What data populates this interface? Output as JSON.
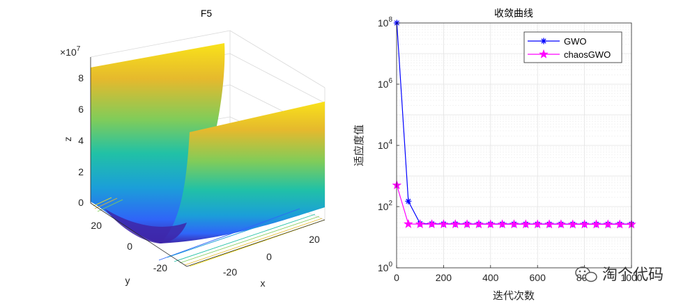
{
  "chart_data": [
    {
      "type": "surface3d",
      "title": "F5",
      "xlabel": "x",
      "ylabel": "y",
      "zlabel": "z",
      "z_exponent_label": "×10",
      "z_exponent_value": "7",
      "x_ticks": [
        "-20",
        "0",
        "20"
      ],
      "y_ticks": [
        "20",
        "0",
        "-20"
      ],
      "z_ticks": [
        "0",
        "2",
        "4",
        "6",
        "8"
      ],
      "xlim": [
        -30,
        30
      ],
      "ylim": [
        -30,
        30
      ],
      "zlim": [
        0,
        90000000
      ],
      "colormap": [
        "#3e26a8",
        "#2f65f8",
        "#1b9fd8",
        "#21c1a6",
        "#81cc59",
        "#e5b92d",
        "#f9e21a"
      ],
      "description_of_surface": "trough along x, rising in y (Rosenbrock-type F5)"
    },
    {
      "type": "line",
      "title": "收敛曲线",
      "xlabel": "迭代次数",
      "ylabel": "适应度值",
      "yscale": "log",
      "xlim": [
        0,
        1000
      ],
      "ylim": [
        1,
        100000000
      ],
      "x_ticks": [
        "0",
        "200",
        "400",
        "600",
        "800",
        "1000"
      ],
      "y_tick_powers": [
        "0",
        "2",
        "4",
        "6",
        "8"
      ],
      "y_tick_base": "10",
      "grid": true,
      "legend_position": "top-right",
      "series": [
        {
          "name": "GWO",
          "color": "#0000ff",
          "marker": "asterisk",
          "x": [
            1,
            50,
            100,
            150,
            200,
            250,
            300,
            350,
            400,
            450,
            500,
            550,
            600,
            650,
            700,
            750,
            800,
            850,
            900,
            950,
            1000
          ],
          "y": [
            100000000,
            150,
            28,
            27.5,
            27.3,
            27.2,
            27.1,
            27.0,
            27.0,
            27.0,
            27.0,
            26.9,
            26.9,
            26.9,
            26.9,
            26.9,
            26.8,
            26.8,
            26.8,
            26.8,
            26.8
          ]
        },
        {
          "name": "chaosGWO",
          "color": "#ff00ff",
          "marker": "pentagram",
          "x": [
            1,
            50,
            100,
            150,
            200,
            250,
            300,
            350,
            400,
            450,
            500,
            550,
            600,
            650,
            700,
            750,
            800,
            850,
            900,
            950,
            1000
          ],
          "y": [
            500,
            27,
            26.8,
            26.7,
            26.6,
            26.6,
            26.5,
            26.5,
            26.5,
            26.5,
            26.4,
            26.4,
            26.4,
            26.4,
            26.4,
            26.3,
            26.3,
            26.3,
            26.3,
            26.3,
            26.3
          ]
        }
      ]
    }
  ],
  "watermark": {
    "text": "淘个代码"
  }
}
